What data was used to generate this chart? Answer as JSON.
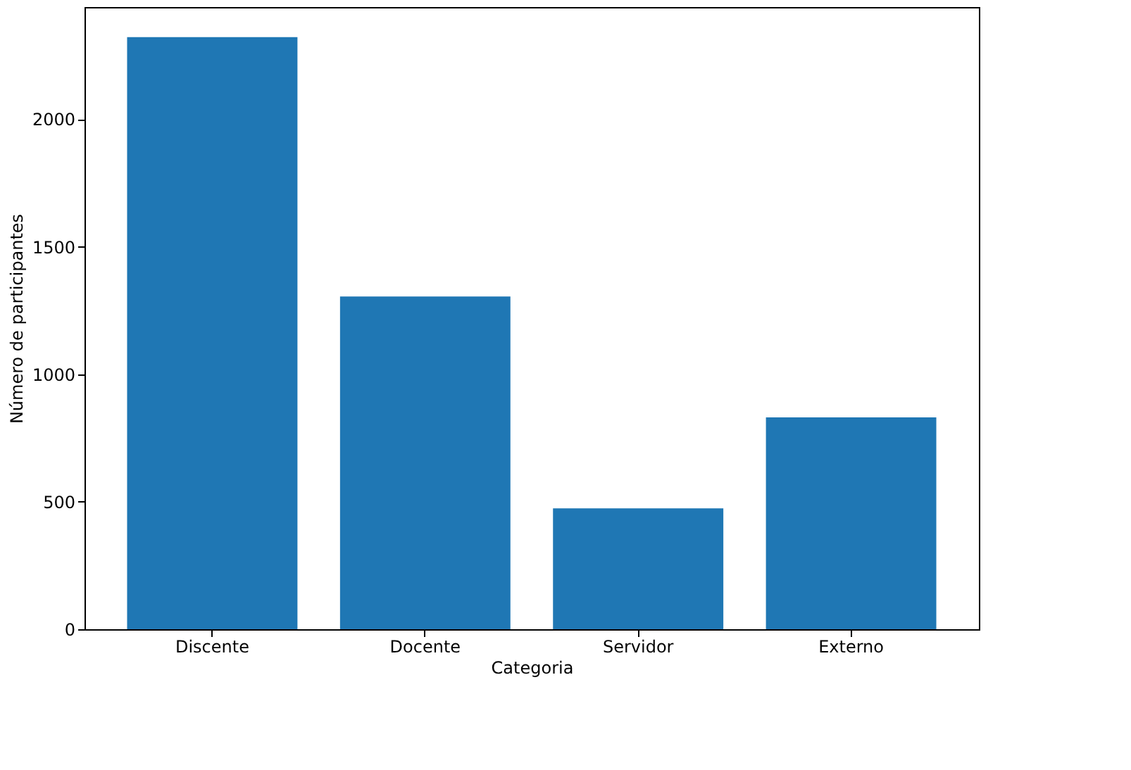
{
  "chart_data": {
    "type": "bar",
    "xlabel": "Categoria",
    "ylabel": "Número de participantes",
    "categories": [
      "Discente",
      "Docente",
      "Servidor",
      "Externo"
    ],
    "values": [
      2322,
      1305,
      474,
      831
    ],
    "color": "#1f77b4",
    "ylim": [
      0,
      2440
    ],
    "yticks": [
      0,
      500,
      1000,
      1500,
      2000
    ],
    "grid": false
  }
}
